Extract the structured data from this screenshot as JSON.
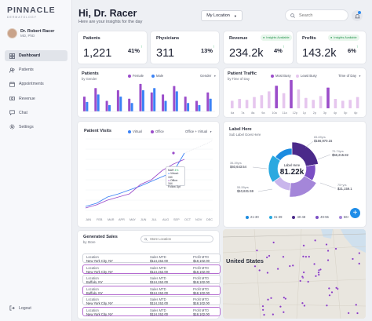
{
  "brand": {
    "name": "PINNACLE",
    "tagline": "DERMATOLOGY"
  },
  "profile": {
    "name": "Dr. Robert Racer",
    "title": "MD, PhD"
  },
  "nav": [
    {
      "label": "Dashboard",
      "icon": "grid-icon",
      "active": true
    },
    {
      "label": "Patients",
      "icon": "users-icon"
    },
    {
      "label": "Appointments",
      "icon": "calendar-icon"
    },
    {
      "label": "Revenue",
      "icon": "dollar-icon"
    },
    {
      "label": "Chat",
      "icon": "chat-icon"
    },
    {
      "label": "Settings",
      "icon": "gear-icon"
    }
  ],
  "logout_label": "Logout",
  "header": {
    "greeting": "Hi, Dr. Racer",
    "subtitle": "Here are your insights for the day",
    "location_label": "My Location",
    "search_placeholder": "Search"
  },
  "kpis": [
    {
      "label": "Patients",
      "value": "1,221",
      "pct": "41%",
      "insight": ""
    },
    {
      "label": "Physicians",
      "value": "311",
      "pct": "13%",
      "insight": ""
    },
    {
      "label": "Revenue",
      "value": "234.2k",
      "pct": "4%",
      "insight": "Insights Available"
    },
    {
      "label": "Profits",
      "value": "143.2k",
      "pct": "6%",
      "insight": "Insights Available"
    }
  ],
  "patients_chart": {
    "title": "Patients",
    "subtitle": "by Gender",
    "legend": [
      "Female",
      "Male"
    ],
    "dropdown": "Gender",
    "colors": [
      "#9b4dca",
      "#3b82f6"
    ]
  },
  "traffic_chart": {
    "title": "Patient Traffic",
    "subtitle": "by Time of Day",
    "legend": [
      "Most Busy",
      "Least Busy"
    ],
    "dropdown": "Time of Day",
    "colors": [
      "#9b4dca",
      "#e6c6ee"
    ]
  },
  "visits_chart": {
    "title": "Patient Visits",
    "legend": [
      "Virtual",
      "Office"
    ],
    "dropdown": "Office + Virtual",
    "tooltip": {
      "month": "MAR",
      "pct": "4%",
      "virtual": "Virtual: 150",
      "office": "Office: 164",
      "followup": "Follow Upt"
    },
    "colors": [
      "#3b82f6",
      "#9b4dca"
    ]
  },
  "donut": {
    "title": "Label Here",
    "subtitle": "Sub Label Goes Here",
    "center_label": "Label Here",
    "center_value": "81.22k",
    "colors": [
      "#4b2a8a",
      "#7b4fc4",
      "#a486d9",
      "#c9b6ec",
      "#2aa9e0",
      "#1b8be0"
    ],
    "callouts": [
      {
        "range": "65-69yrs",
        "value": "$156,970.15"
      },
      {
        "range": "70-74yrs",
        "value": "$56,215.82"
      },
      {
        "range": "75+yrs",
        "value": "$21,159.1"
      },
      {
        "range": "35-39yrs",
        "value": "$40,643.54"
      },
      {
        "range": "55-59yrs",
        "value": "$10,631.59"
      }
    ],
    "legend": [
      {
        "label": "21-30",
        "color": "#1b8be0"
      },
      {
        "label": "31-39",
        "color": "#2aa9e0"
      },
      {
        "label": "40-48",
        "color": "#4b2a8a"
      },
      {
        "label": "49-55",
        "color": "#7b4fc4"
      },
      {
        "label": "56+",
        "color": "#a486d9"
      }
    ]
  },
  "sales": {
    "title": "Generated Sales",
    "subtitle": "by Store",
    "search_placeholder": "Store Location",
    "rows": [
      {
        "loc_label": "Location",
        "loc": "New York City, NY",
        "sales": "$114,152.00",
        "profit": "$18,102.00",
        "highlight": false
      },
      {
        "loc_label": "Location",
        "loc": "New York City, NY",
        "sales": "$114,152.00",
        "profit": "$18,102.00",
        "highlight": true
      },
      {
        "loc_label": "Location",
        "loc": "Buffalo, NY",
        "sales": "$114,152.00",
        "profit": "$18,102.00",
        "highlight": false
      },
      {
        "loc_label": "Location",
        "loc": "Buffalo, NY",
        "sales": "$114,152.00",
        "profit": "$18,102.00",
        "highlight": true
      },
      {
        "loc_label": "Location",
        "loc": "New York City, NY",
        "sales": "$114,152.00",
        "profit": "$18,102.00",
        "highlight": false
      },
      {
        "loc_label": "Location",
        "loc": "New York City, NY",
        "sales": "$114,152.00",
        "profit": "$18,102.00",
        "highlight": true
      }
    ],
    "sales_label": "Sales MTD",
    "profit_label": "Profit MTD"
  },
  "map": {
    "country_label": "United States"
  }
}
